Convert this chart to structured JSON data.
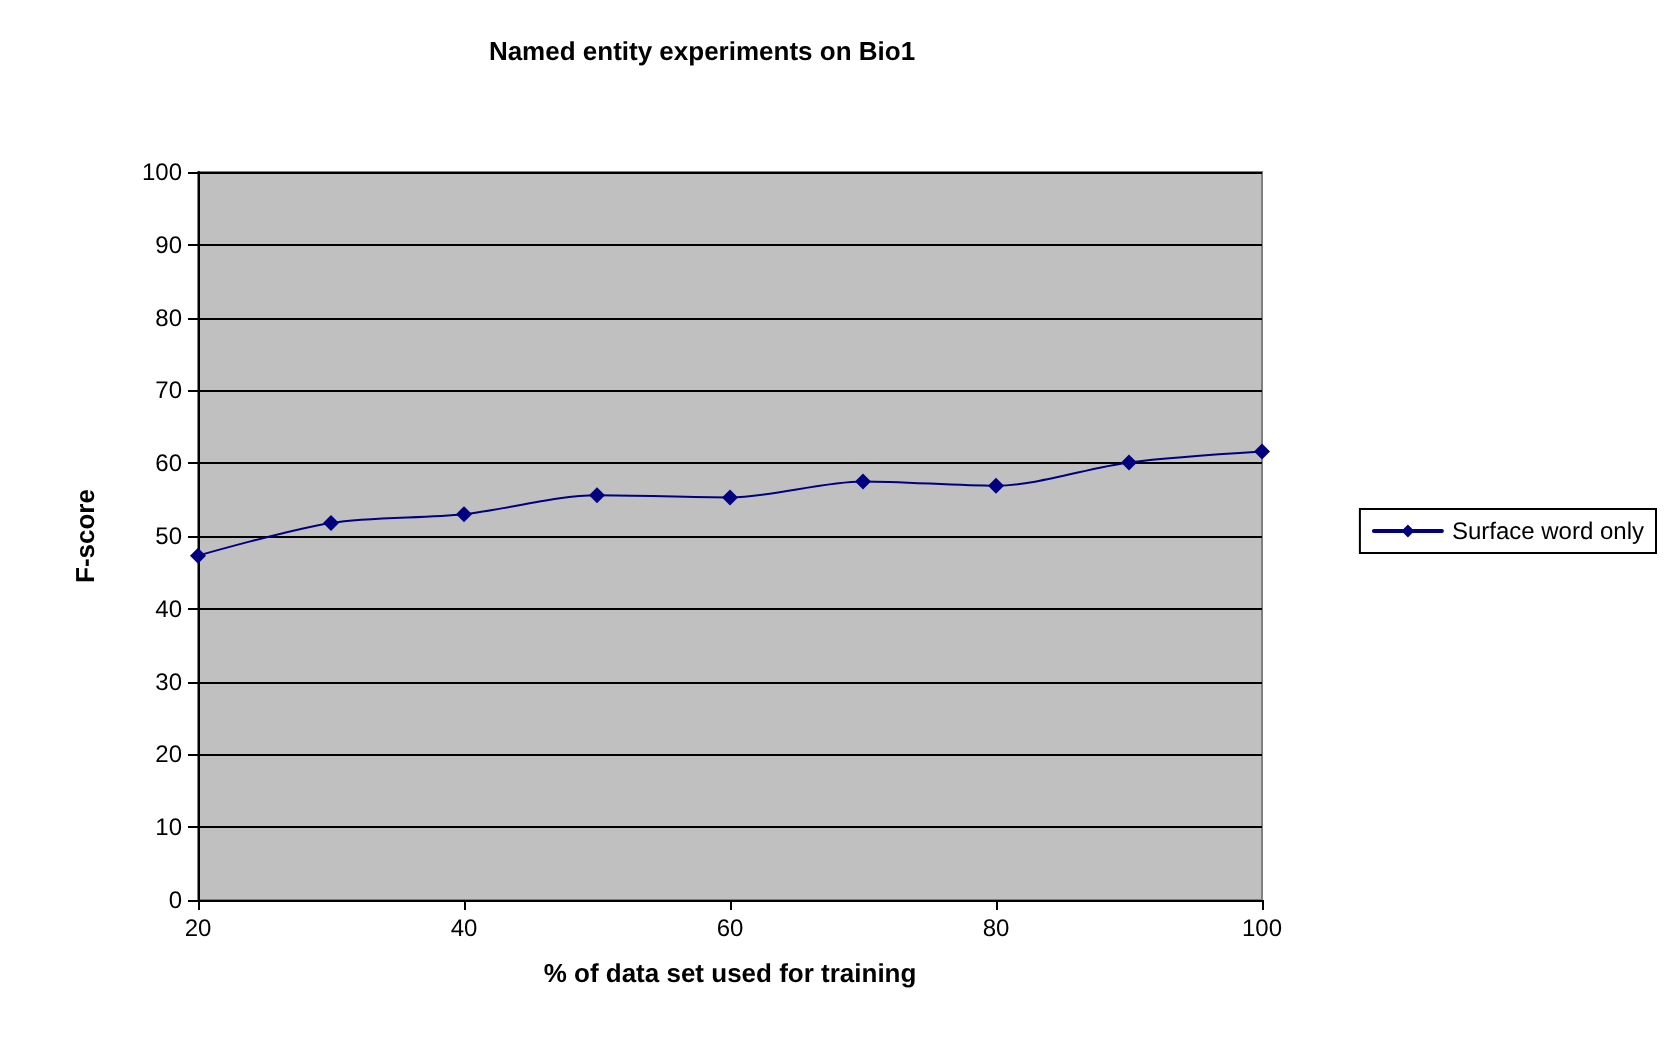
{
  "chart_data": {
    "type": "line",
    "title": "Named entity experiments on Bio1",
    "xlabel": "% of data set used for training",
    "ylabel": "F-score",
    "x": [
      20,
      30,
      40,
      50,
      60,
      70,
      80,
      90,
      100
    ],
    "series": [
      {
        "name": "Surface word only",
        "color": "#000080",
        "values": [
          47.3,
          51.8,
          53.0,
          55.6,
          55.3,
          57.5,
          56.9,
          60.1,
          61.6
        ]
      }
    ],
    "xlim": [
      20,
      100
    ],
    "xticks": [
      20,
      40,
      60,
      80,
      100
    ],
    "ylim": [
      0,
      100
    ],
    "yticks": [
      0,
      10,
      20,
      30,
      40,
      50,
      60,
      70,
      80,
      90,
      100
    ],
    "grid": "y",
    "legend": "right",
    "marker": "diamond",
    "line_style": "solid"
  }
}
